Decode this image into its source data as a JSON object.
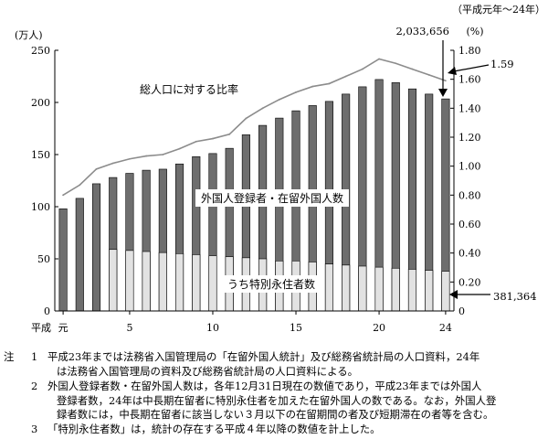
{
  "chart_data": {
    "type": "bar",
    "period_label": "（平成元年～24年）",
    "y_left_unit": "(万人)",
    "y_right_unit": "(%)",
    "x_prefix": "平成",
    "x_ticks": [
      {
        "x": 1,
        "label": "元"
      },
      {
        "x": 5,
        "label": "5"
      },
      {
        "x": 10,
        "label": "10"
      },
      {
        "x": 15,
        "label": "15"
      },
      {
        "x": 20,
        "label": "20"
      },
      {
        "x": 24,
        "label": "24"
      }
    ],
    "ylim_left": [
      0,
      250
    ],
    "yticks_left": [
      "0",
      "50",
      "100",
      "150",
      "200",
      "250"
    ],
    "ylim_right": [
      0,
      1.8
    ],
    "yticks_right": [
      "0",
      "0.20",
      "0.40",
      "0.60",
      "0.80",
      "1.00",
      "1.20",
      "1.40",
      "1.60",
      "1.80"
    ],
    "x": [
      1,
      2,
      3,
      4,
      5,
      6,
      7,
      8,
      9,
      10,
      11,
      12,
      13,
      14,
      15,
      16,
      17,
      18,
      19,
      20,
      21,
      22,
      23,
      24
    ],
    "series": [
      {
        "name": "外国人登録者・在留外国人数",
        "unit": "万人",
        "values": [
          98,
          108,
          122,
          128,
          132,
          135,
          136,
          141,
          148,
          151,
          156,
          169,
          178,
          185,
          192,
          197,
          201,
          208,
          215,
          222,
          219,
          213,
          208,
          203.4
        ]
      },
      {
        "name": "うち特別永住者数",
        "unit": "万人",
        "values": [
          null,
          null,
          null,
          59,
          58,
          57,
          56,
          55,
          54,
          53,
          52,
          51,
          50,
          48,
          48,
          47,
          45,
          44,
          43,
          42,
          41,
          40,
          39,
          38.1
        ]
      },
      {
        "name": "総人口に対する比率",
        "unit": "%",
        "values": [
          0.8,
          0.87,
          0.98,
          1.02,
          1.05,
          1.07,
          1.08,
          1.12,
          1.17,
          1.19,
          1.22,
          1.33,
          1.4,
          1.46,
          1.51,
          1.55,
          1.57,
          1.62,
          1.67,
          1.74,
          1.71,
          1.67,
          1.63,
          1.59
        ]
      }
    ],
    "annotations": {
      "total_last": "2,033,656",
      "special_last": "381,364",
      "ratio_last": "1.59",
      "label_total": "外国人登録者・在留外国人数",
      "label_special": "うち特別永住者数",
      "label_ratio": "総人口に対する比率"
    },
    "colors": {
      "total_bar": "#6e6e6e",
      "special_bar": "#e2e2e2",
      "ratio_line": "#8c8c8c",
      "axis": "#000000"
    }
  },
  "notes": [
    {
      "mark": "注",
      "num": "1",
      "lines": [
        "平成23年までは法務省入国管理局の「在留外国人統計」及び総務省統計局の人口資料，24年",
        "は法務省入国管理局の資料及び総務省統計局の人口資料による。"
      ]
    },
    {
      "mark": "",
      "num": "2",
      "lines": [
        "外国人登録者数・在留外国人数は，各年12月31日現在の数値であり，平成23年までは外国人",
        "登録者数，24年は中長期在留者に特別永住者を加えた在留外国人の数である。なお，外国人登",
        "録者数には，中長期在留者に該当しない３月以下の在留期間の者及び短期滞在の者等を含む。"
      ]
    },
    {
      "mark": "",
      "num": "3",
      "lines": [
        "「特別永住者数」は，統計の存在する平成４年以降の数値を計上した。"
      ]
    }
  ]
}
